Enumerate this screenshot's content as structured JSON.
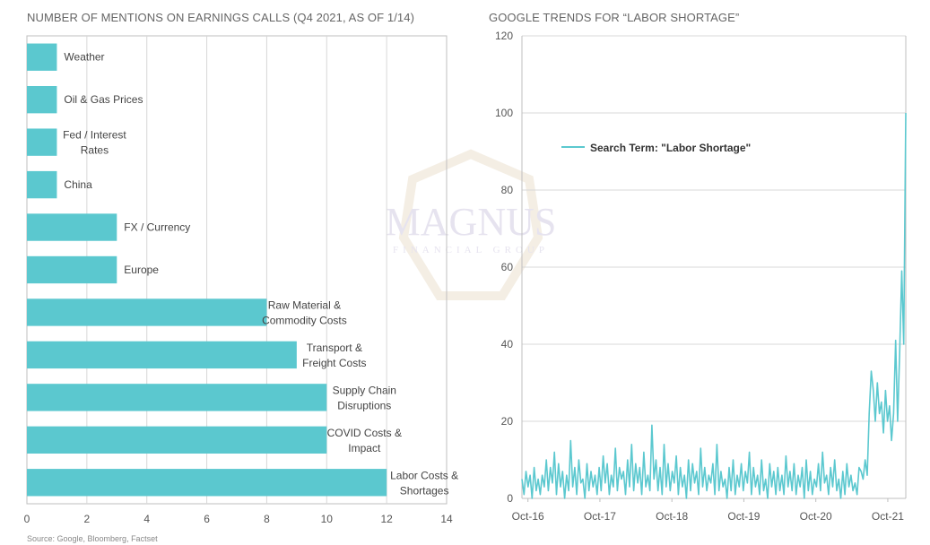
{
  "left_title": "NUMBER OF MENTIONS ON EARNINGS CALLS (Q4 2021, AS OF 1/14)",
  "right_title": "GOOGLE TRENDS FOR “LABOR SHORTAGE”",
  "source": "Source: Google, Bloomberg, Factset",
  "watermark": {
    "line1": "MAGNUS",
    "line2": "FINANCIAL GROUP"
  },
  "colors": {
    "bar": "#5bc8cf",
    "line": "#5bc8cf",
    "grid": "#d8d8d8",
    "axis": "#bfbfbf"
  },
  "chart_data": [
    {
      "type": "bar",
      "orientation": "horizontal",
      "title": "NUMBER OF MENTIONS ON EARNINGS CALLS (Q4 2021, AS OF 1/14)",
      "categories": [
        [
          "Weather"
        ],
        [
          "Oil & Gas Prices"
        ],
        [
          "Fed / Interest",
          "Rates"
        ],
        [
          "China"
        ],
        [
          "FX / Currency"
        ],
        [
          "Europe"
        ],
        [
          "Raw Material &",
          "Commodity Costs"
        ],
        [
          "Transport &",
          "Freight Costs"
        ],
        [
          "Supply Chain",
          "Disruptions"
        ],
        [
          "COVID Costs &",
          "Impact"
        ],
        [
          "Labor Costs &",
          "Shortages"
        ]
      ],
      "values": [
        1,
        1,
        1,
        1,
        3,
        3,
        8,
        9,
        10,
        10,
        12
      ],
      "xlim": [
        0,
        14
      ],
      "xticks": [
        "0",
        "2",
        "4",
        "6",
        "8",
        "10",
        "12",
        "14"
      ],
      "grid": true
    },
    {
      "type": "line",
      "title": "GOOGLE TRENDS FOR “LABOR SHORTAGE”",
      "ylim": [
        0,
        120
      ],
      "yticks": [
        "0",
        "20",
        "40",
        "60",
        "80",
        "100",
        "120"
      ],
      "xticks": [
        "Oct-16",
        "Oct-17",
        "Oct-18",
        "Oct-19",
        "Oct-20",
        "Oct-21"
      ],
      "grid": true,
      "legend": "top-left",
      "series": [
        {
          "name": "Search Term: \"Labor Shortage\"",
          "x_start": "2016-09",
          "x_end": "2022-01",
          "values": [
            5,
            1,
            7,
            3,
            6,
            0,
            8,
            2,
            5,
            1,
            6,
            3,
            10,
            2,
            8,
            4,
            12,
            1,
            9,
            3,
            7,
            0,
            6,
            2,
            15,
            3,
            8,
            1,
            10,
            4,
            5,
            0,
            9,
            2,
            7,
            3,
            6,
            1,
            8,
            2,
            11,
            4,
            9,
            1,
            6,
            3,
            13,
            2,
            8,
            5,
            7,
            1,
            10,
            3,
            14,
            2,
            9,
            4,
            8,
            1,
            12,
            3,
            6,
            2,
            19,
            5,
            10,
            2,
            8,
            1,
            14,
            3,
            9,
            2,
            7,
            4,
            11,
            1,
            8,
            3,
            6,
            0,
            10,
            2,
            9,
            4,
            7,
            1,
            13,
            3,
            8,
            2,
            6,
            4,
            9,
            1,
            14,
            2,
            7,
            3,
            5,
            0,
            8,
            2,
            10,
            1,
            6,
            3,
            9,
            2,
            7,
            4,
            12,
            1,
            8,
            3,
            6,
            1,
            10,
            2,
            5,
            0,
            9,
            3,
            7,
            1,
            8,
            2,
            6,
            1,
            11,
            3,
            7,
            2,
            9,
            1,
            6,
            3,
            8,
            0,
            10,
            2,
            7,
            1,
            5,
            3,
            9,
            2,
            12,
            4,
            6,
            1,
            8,
            3,
            10,
            2,
            5,
            0,
            7,
            1,
            9,
            3,
            6,
            2,
            4,
            1,
            8,
            7,
            5,
            10,
            6,
            22,
            33,
            28,
            20,
            30,
            22,
            25,
            17,
            28,
            20,
            24,
            15,
            22,
            41,
            20,
            38,
            59,
            40,
            100
          ]
        }
      ]
    }
  ]
}
